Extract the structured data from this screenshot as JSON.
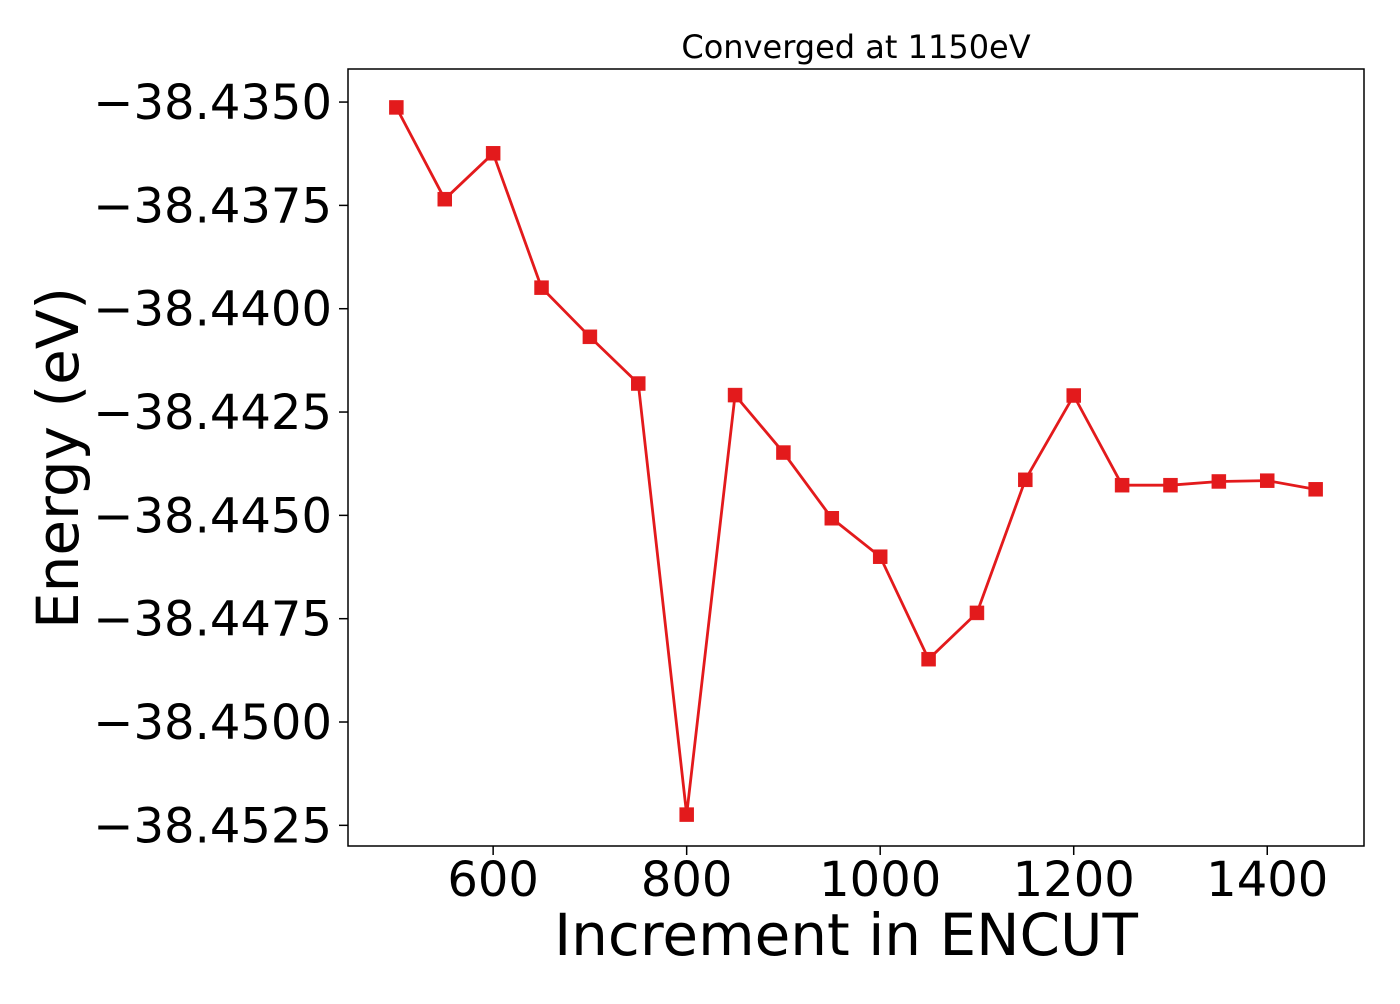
{
  "chart_data": {
    "type": "line",
    "title": "Converged at 1150eV",
    "xlabel": "Increment in ENCUT",
    "ylabel": "Energy (eV)",
    "xlim": [
      450,
      1500
    ],
    "ylim": [
      -38.453,
      -38.4342
    ],
    "xticks": [
      600,
      800,
      1000,
      1200,
      1400
    ],
    "xtick_labels": [
      "600",
      "800",
      "1000",
      "1200",
      "1400"
    ],
    "yticks": [
      -38.435,
      -38.4375,
      -38.44,
      -38.4425,
      -38.445,
      -38.4475,
      -38.45,
      -38.4525
    ],
    "ytick_labels": [
      "−38.4350",
      "−38.4375",
      "−38.4400",
      "−38.4425",
      "−38.4450",
      "−38.4475",
      "−38.4500",
      "−38.4525"
    ],
    "grid": false,
    "series": [
      {
        "color": "#e31a1c",
        "marker": "square",
        "x": [
          500,
          550,
          600,
          650,
          700,
          750,
          800,
          850,
          900,
          950,
          1000,
          1050,
          1100,
          1150,
          1200,
          1250,
          1300,
          1350,
          1400,
          1450
        ],
        "y": [
          -38.43513,
          -38.43735,
          -38.43624,
          -38.43949,
          -38.44068,
          -38.44181,
          -38.45224,
          -38.44209,
          -38.44348,
          -38.44507,
          -38.446,
          -38.44848,
          -38.44736,
          -38.44414,
          -38.4421,
          -38.44427,
          -38.44427,
          -38.44418,
          -38.44416,
          -38.44437
        ]
      }
    ]
  }
}
